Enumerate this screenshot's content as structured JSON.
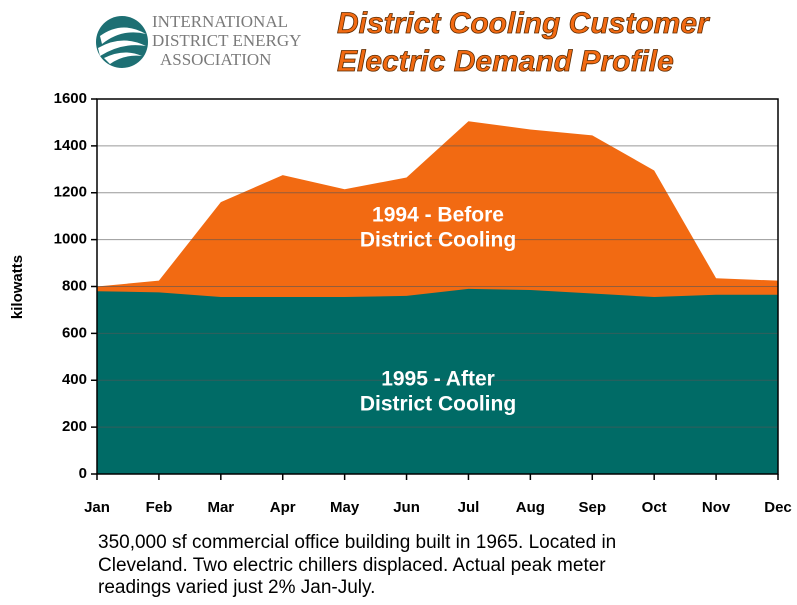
{
  "chart_data": {
    "type": "area",
    "logo_text": [
      "INTERNATIONAL",
      "DISTRICT ENERGY",
      "ASSOCIATION"
    ],
    "title": [
      "District Cooling Customer",
      "Electric Demand Profile"
    ],
    "ylabel": "kilowatts",
    "categories": [
      "Jan",
      "Feb",
      "Mar",
      "Apr",
      "May",
      "Jun",
      "Jul",
      "Aug",
      "Sep",
      "Oct",
      "Nov",
      "Dec"
    ],
    "series": [
      {
        "name": [
          "1994 - Before",
          "District Cooling"
        ],
        "color": "#f26a12",
        "values": [
          800,
          825,
          1160,
          1275,
          1215,
          1265,
          1505,
          1470,
          1445,
          1295,
          835,
          825
        ]
      },
      {
        "name": [
          "1995 - After",
          "District Cooling"
        ],
        "color": "#006b66",
        "values": [
          780,
          775,
          755,
          755,
          755,
          760,
          790,
          785,
          770,
          755,
          765,
          765
        ]
      }
    ],
    "ylim": [
      0,
      1600
    ],
    "yticks": [
      0,
      200,
      400,
      600,
      800,
      1000,
      1200,
      1400,
      1600
    ],
    "grid": true,
    "note": [
      "350,000 sf commercial office building built in 1965. Located in",
      "Cleveland. Two electric chillers displaced. Actual peak meter",
      "readings varied just 2% Jan-July."
    ]
  }
}
